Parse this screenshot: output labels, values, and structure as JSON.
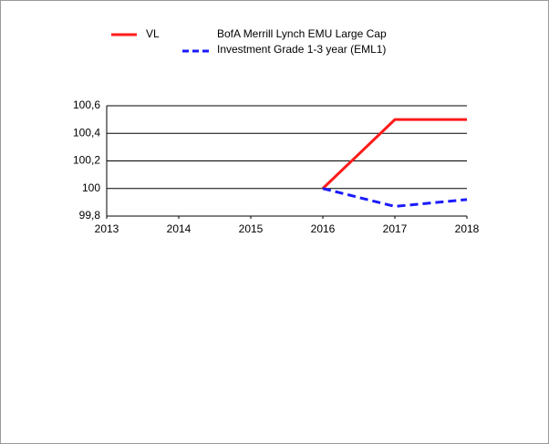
{
  "chart_data": {
    "type": "line",
    "x": [
      2013,
      2014,
      2015,
      2016,
      2017,
      2018
    ],
    "series": [
      {
        "name": "VL",
        "color": "#ff1a1a",
        "dash": false,
        "values": [
          null,
          null,
          null,
          100,
          100.5,
          100.5
        ]
      },
      {
        "name": "BofA Merrill Lynch EMU Large Cap Investment Grade 1-3 year (EML1)",
        "color": "#1a1aff",
        "dash": true,
        "values": [
          null,
          null,
          null,
          100,
          99.87,
          99.92
        ]
      }
    ],
    "xlim": [
      2013,
      2018
    ],
    "xticks": [
      2013,
      2014,
      2015,
      2016,
      2017,
      2018
    ],
    "ylim": [
      99.8,
      100.6
    ],
    "yticks": [
      {
        "value": 99.8,
        "label": "99,8"
      },
      100,
      {
        "value": 100.2,
        "label": "100,2"
      },
      {
        "value": 100.4,
        "label": "100,4"
      },
      {
        "value": 100.6,
        "label": "100,6"
      }
    ],
    "grid": true,
    "legend": "top"
  }
}
